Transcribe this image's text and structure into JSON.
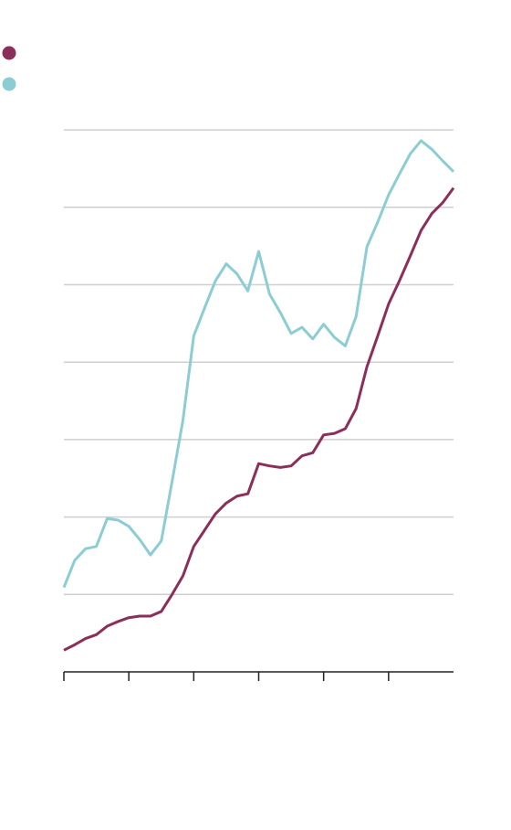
{
  "chart_data": {
    "type": "line",
    "x": [
      0,
      1,
      2,
      3,
      4,
      5,
      6,
      7,
      8,
      9,
      10,
      11,
      12,
      13,
      14,
      15,
      16,
      17,
      18,
      19,
      20,
      21,
      22,
      23,
      24,
      25,
      26,
      27,
      28,
      29,
      30,
      31,
      32,
      33,
      34,
      35,
      36
    ],
    "series": [
      {
        "color": "#8b2e5a",
        "values": [
          0.28,
          0.35,
          0.43,
          0.48,
          0.59,
          0.65,
          0.7,
          0.72,
          0.72,
          0.78,
          1.0,
          1.24,
          1.62,
          1.83,
          2.04,
          2.18,
          2.27,
          2.3,
          2.69,
          2.66,
          2.64,
          2.66,
          2.79,
          2.83,
          3.06,
          3.08,
          3.14,
          3.4,
          3.94,
          4.34,
          4.75,
          5.05,
          5.37,
          5.7,
          5.92,
          6.06,
          6.25
        ]
      },
      {
        "color": "#8ccdd3",
        "values": [
          1.09,
          1.44,
          1.59,
          1.62,
          1.98,
          1.96,
          1.88,
          1.71,
          1.51,
          1.69,
          2.46,
          3.25,
          4.34,
          4.7,
          5.05,
          5.27,
          5.14,
          4.92,
          5.43,
          4.88,
          4.64,
          4.37,
          4.45,
          4.3,
          4.49,
          4.32,
          4.21,
          4.59,
          5.49,
          5.81,
          6.16,
          6.43,
          6.69,
          6.86,
          6.75,
          6.6,
          6.46
        ]
      }
    ],
    "xlim": [
      0,
      36
    ],
    "xticks": [
      0,
      6,
      12,
      18,
      24,
      30
    ],
    "ylim": [
      0,
      7
    ],
    "yticks": [
      1,
      2,
      3,
      4,
      5,
      6,
      7
    ],
    "grid": true
  }
}
